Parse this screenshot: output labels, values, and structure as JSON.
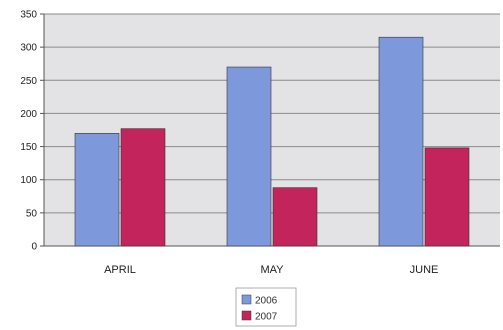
{
  "chart_data": {
    "type": "bar",
    "categories": [
      "APRIL",
      "MAY",
      "JUNE"
    ],
    "series": [
      {
        "name": "2006",
        "values": [
          170,
          270,
          315
        ],
        "color": "#7e99db"
      },
      {
        "name": "2007",
        "values": [
          177,
          88,
          148
        ],
        "color": "#c2245b"
      }
    ],
    "yticks": [
      0,
      50,
      100,
      150,
      200,
      250,
      300,
      350
    ],
    "ylim": [
      0,
      350
    ],
    "grid": true,
    "legend_position": "bottom-center",
    "plot_background": "#e3e3e6"
  }
}
